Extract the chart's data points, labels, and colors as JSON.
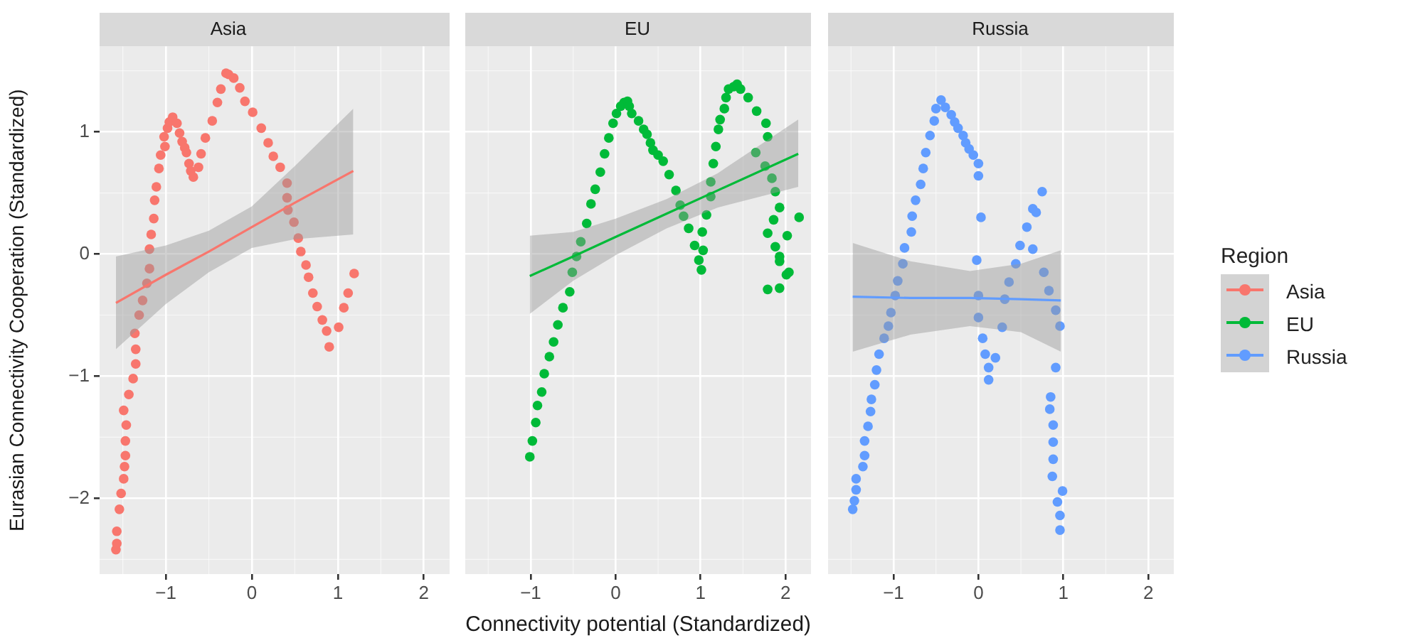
{
  "chart_data": [
    {
      "type": "scatter",
      "title": "Asia",
      "ylabel": "Eurasian Connectivity Cooperation (Standardized)",
      "xlim": [
        -1.77,
        2.3
      ],
      "ylim": [
        -2.62,
        1.7
      ],
      "xticks": [
        -1,
        0,
        1,
        2
      ],
      "yticks": [
        -2,
        -1,
        0,
        1
      ],
      "grid": true,
      "series": [
        {
          "name": "Asia",
          "marker": "circle",
          "color": "#f8766d",
          "x": [
            -1.58,
            -1.57,
            -1.57,
            -1.54,
            -1.52,
            -1.49,
            -1.48,
            -1.47,
            -1.47,
            -1.46,
            -1.49,
            -1.43,
            -1.38,
            -1.35,
            -1.35,
            -1.36,
            -1.31,
            -1.27,
            -1.22,
            -1.19,
            -1.19,
            -1.17,
            -1.14,
            -1.13,
            -1.11,
            -1.08,
            -1.06,
            -1.01,
            -1.02,
            -0.98,
            -0.96,
            -0.92,
            -0.87,
            -0.84,
            -0.81,
            -0.78,
            -0.76,
            -0.73,
            -0.71,
            -0.68,
            -0.62,
            -0.59,
            -0.54,
            -0.46,
            -0.4,
            -0.36,
            -0.3,
            -0.27,
            -0.21,
            -0.14,
            -0.08,
            0.01,
            0.11,
            0.19,
            0.25,
            0.33,
            0.41,
            0.41,
            0.42,
            0.49,
            0.54,
            0.57,
            0.63,
            0.66,
            0.71,
            0.76,
            0.82,
            0.87,
            0.9,
            1.01,
            1.07,
            1.12,
            1.19
          ],
          "values": [
            -2.42,
            -2.37,
            -2.27,
            -2.09,
            -1.96,
            -1.84,
            -1.74,
            -1.65,
            -1.53,
            -1.4,
            -1.28,
            -1.15,
            -1.02,
            -0.9,
            -0.78,
            -0.65,
            -0.5,
            -0.38,
            -0.24,
            -0.12,
            0.04,
            0.16,
            0.29,
            0.44,
            0.55,
            0.7,
            0.81,
            0.88,
            0.96,
            1.03,
            1.08,
            1.12,
            1.07,
            0.99,
            0.92,
            0.87,
            0.83,
            0.74,
            0.68,
            0.63,
            0.71,
            0.82,
            0.95,
            1.09,
            1.24,
            1.35,
            1.48,
            1.47,
            1.44,
            1.36,
            1.25,
            1.16,
            1.03,
            0.91,
            0.8,
            0.71,
            0.58,
            0.46,
            0.36,
            0.26,
            0.13,
            0.02,
            -0.09,
            -0.19,
            -0.32,
            -0.43,
            -0.54,
            -0.63,
            -0.76,
            -0.6,
            -0.44,
            -0.32,
            -0.16
          ]
        },
        {
          "type": "line",
          "color": "#f8766d",
          "line_style": "solid",
          "marker": "none",
          "x": [
            -1.58,
            -1,
            -0.5,
            0,
            0.5,
            1.18
          ],
          "values": [
            -0.4,
            -0.17,
            0.02,
            0.22,
            0.42,
            0.68
          ],
          "lower": [
            -0.78,
            -0.41,
            -0.15,
            0.05,
            0.12,
            0.16
          ],
          "upper": [
            -0.02,
            0.07,
            0.19,
            0.39,
            0.72,
            1.19
          ]
        }
      ]
    },
    {
      "type": "scatter",
      "title": "EU",
      "xlabel": "Connectivity potential (Standardized)",
      "xlim": [
        -1.77,
        2.3
      ],
      "ylim": [
        -2.62,
        1.7
      ],
      "xticks": [
        -1,
        0,
        1,
        2
      ],
      "yticks": [
        -2,
        -1,
        0,
        1
      ],
      "tick_labels": "x",
      "grid": true,
      "series": [
        {
          "name": "EU",
          "marker": "circle",
          "color": "#00ba38",
          "x": [
            -1.01,
            -0.98,
            -0.94,
            -0.92,
            -0.87,
            -0.84,
            -0.78,
            -0.73,
            -0.68,
            -0.62,
            -0.54,
            -0.51,
            -0.46,
            -0.41,
            -0.34,
            -0.29,
            -0.24,
            -0.18,
            -0.13,
            -0.08,
            -0.03,
            0.01,
            0.06,
            0.1,
            0.14,
            0.16,
            0.19,
            0.27,
            0.33,
            0.37,
            0.41,
            0.44,
            0.5,
            0.56,
            0.63,
            0.71,
            0.76,
            0.8,
            0.86,
            0.93,
            0.98,
            1.01,
            1.03,
            1.02,
            1.07,
            1.12,
            1.12,
            1.15,
            1.18,
            1.21,
            1.23,
            1.28,
            1.3,
            1.33,
            1.39,
            1.43,
            1.47,
            1.56,
            1.66,
            1.77,
            1.79,
            1.65,
            1.76,
            1.84,
            1.88,
            1.93,
            1.86,
            1.79,
            1.88,
            1.93,
            1.93,
            1.79,
            1.93,
            2.01,
            2.04,
            2.02,
            2.16
          ],
          "values": [
            -1.66,
            -1.53,
            -1.38,
            -1.24,
            -1.13,
            -0.98,
            -0.84,
            -0.72,
            -0.58,
            -0.44,
            -0.31,
            -0.15,
            -0.02,
            0.1,
            0.25,
            0.41,
            0.53,
            0.67,
            0.82,
            0.95,
            1.07,
            1.15,
            1.21,
            1.24,
            1.25,
            1.21,
            1.15,
            1.09,
            1.02,
            0.98,
            0.91,
            0.85,
            0.81,
            0.76,
            0.65,
            0.52,
            0.4,
            0.31,
            0.21,
            0.07,
            -0.05,
            -0.13,
            0.03,
            0.18,
            0.32,
            0.47,
            0.59,
            0.74,
            0.88,
            1.02,
            1.1,
            1.19,
            1.28,
            1.35,
            1.37,
            1.39,
            1.35,
            1.28,
            1.17,
            1.07,
            0.96,
            0.83,
            0.72,
            0.62,
            0.51,
            0.38,
            0.28,
            0.17,
            0.06,
            -0.02,
            -0.06,
            -0.29,
            -0.28,
            -0.17,
            -0.15,
            0.15,
            0.3
          ]
        },
        {
          "type": "line",
          "color": "#00ba38",
          "line_style": "solid",
          "marker": "none",
          "x": [
            -1.01,
            -0.5,
            0,
            0.6,
            1.2,
            2.15
          ],
          "values": [
            -0.18,
            -0.02,
            0.14,
            0.33,
            0.52,
            0.82
          ],
          "lower": [
            -0.49,
            -0.22,
            -0.01,
            0.21,
            0.38,
            0.55
          ],
          "upper": [
            0.15,
            0.18,
            0.29,
            0.45,
            0.66,
            1.1
          ]
        }
      ]
    },
    {
      "type": "scatter",
      "title": "Russia",
      "xlim": [
        -1.77,
        2.3
      ],
      "ylim": [
        -2.62,
        1.7
      ],
      "xticks": [
        -1,
        0,
        1,
        2
      ],
      "yticks": [
        -2,
        -1,
        0,
        1
      ],
      "tick_labels": "x",
      "grid": true,
      "legend": "right",
      "legend_title": "Region",
      "series": [
        {
          "name": "Russia",
          "marker": "circle",
          "color": "#619cff",
          "x": [
            -1.48,
            -1.46,
            -1.44,
            -1.44,
            -1.36,
            -1.34,
            -1.34,
            -1.3,
            -1.27,
            -1.26,
            -1.22,
            -1.2,
            -1.17,
            -1.11,
            -1.06,
            -1.03,
            -0.98,
            -0.95,
            -0.89,
            -0.87,
            -0.79,
            -0.78,
            -0.74,
            -0.68,
            -0.65,
            -0.62,
            -0.57,
            -0.52,
            -0.5,
            -0.44,
            -0.39,
            -0.32,
            -0.28,
            -0.24,
            -0.18,
            -0.15,
            -0.11,
            -0.06,
            0,
            0,
            0.03,
            -0.02,
            0,
            0,
            0.05,
            0.08,
            0.12,
            0.12,
            0.2,
            0.28,
            0.31,
            0.36,
            0.44,
            0.49,
            0.57,
            0.64,
            0.64,
            0.68,
            0.75,
            0.77,
            0.83,
            0.91,
            0.96,
            0.91,
            0.85,
            0.84,
            0.88,
            0.88,
            0.88,
            0.87,
            0.99,
            0.93,
            0.96,
            0.96
          ],
          "values": [
            -2.09,
            -2.02,
            -1.93,
            -1.84,
            -1.74,
            -1.65,
            -1.53,
            -1.41,
            -1.29,
            -1.19,
            -1.07,
            -0.95,
            -0.82,
            -0.69,
            -0.59,
            -0.48,
            -0.34,
            -0.22,
            -0.08,
            0.05,
            0.18,
            0.31,
            0.44,
            0.57,
            0.7,
            0.83,
            0.97,
            1.09,
            1.19,
            1.26,
            1.2,
            1.14,
            1.08,
            1.03,
            0.97,
            0.91,
            0.86,
            0.81,
            0.74,
            0.64,
            0.3,
            -0.05,
            -0.34,
            -0.52,
            -0.69,
            -0.82,
            -0.93,
            -1.03,
            -0.85,
            -0.6,
            -0.37,
            -0.23,
            -0.08,
            0.07,
            0.22,
            0.04,
            0.37,
            0.34,
            0.51,
            -0.15,
            -0.3,
            -0.46,
            -0.59,
            -0.93,
            -1.17,
            -1.27,
            -1.4,
            -1.54,
            -1.68,
            -1.82,
            -1.94,
            -2.03,
            -2.14,
            -2.26
          ]
        },
        {
          "type": "line",
          "color": "#619cff",
          "line_style": "solid",
          "marker": "none",
          "x": [
            -1.48,
            -0.8,
            -0.1,
            0.5,
            0.97
          ],
          "values": [
            -0.35,
            -0.36,
            -0.36,
            -0.37,
            -0.38
          ],
          "lower": [
            -0.8,
            -0.66,
            -0.59,
            -0.64,
            -0.8
          ],
          "upper": [
            0.09,
            -0.06,
            -0.14,
            -0.08,
            0.03
          ]
        }
      ]
    }
  ]
}
